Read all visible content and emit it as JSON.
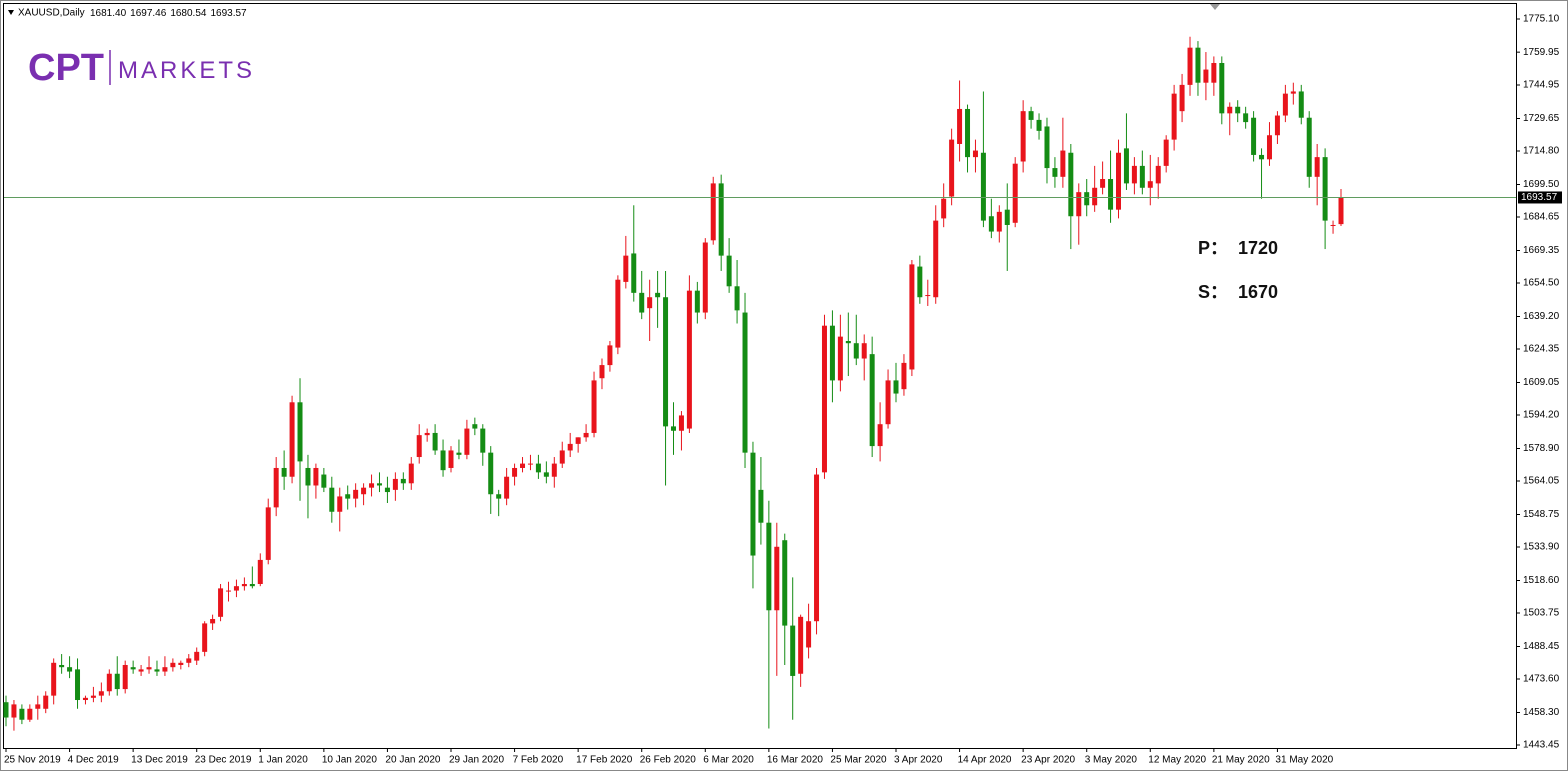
{
  "chart_data": {
    "type": "candlestick",
    "title": "XAUUSD,Daily",
    "last_bar_labels": [
      "1681.40",
      "1697.46",
      "1680.54",
      "1693.57"
    ],
    "logo": {
      "mark": "CPT",
      "text": "MARKETS"
    },
    "annotations": [
      {
        "label": "P：",
        "value": 1720
      },
      {
        "label": "S：",
        "value": 1670
      }
    ],
    "up_color": "#e8141c",
    "down_color": "#148c14",
    "price_line_color": "#5f9c5f",
    "grid": false,
    "ylim": [
      1442.08,
      1781.95
    ],
    "yticks": [
      {
        "value": 1775.1,
        "label": "1775.10"
      },
      {
        "value": 1759.95,
        "label": "1759.95"
      },
      {
        "value": 1744.95,
        "label": "1744.95"
      },
      {
        "value": 1729.65,
        "label": "1729.65"
      },
      {
        "value": 1714.8,
        "label": "1714.80"
      },
      {
        "value": 1699.5,
        "label": "1699.50"
      },
      {
        "value": 1684.65,
        "label": "1684.65"
      },
      {
        "value": 1669.35,
        "label": "1669.35"
      },
      {
        "value": 1654.5,
        "label": "1654.50"
      },
      {
        "value": 1639.2,
        "label": "1639.20"
      },
      {
        "value": 1624.35,
        "label": "1624.35"
      },
      {
        "value": 1609.05,
        "label": "1609.05"
      },
      {
        "value": 1594.2,
        "label": "1594.20"
      },
      {
        "value": 1578.9,
        "label": "1578.90"
      },
      {
        "value": 1564.05,
        "label": "1564.05"
      },
      {
        "value": 1548.75,
        "label": "1548.75"
      },
      {
        "value": 1533.9,
        "label": "1533.90"
      },
      {
        "value": 1518.6,
        "label": "1518.60"
      },
      {
        "value": 1503.75,
        "label": "1503.75"
      },
      {
        "value": 1488.45,
        "label": "1488.45"
      },
      {
        "value": 1473.6,
        "label": "1473.60"
      },
      {
        "value": 1458.3,
        "label": "1458.30"
      },
      {
        "value": 1443.45,
        "label": "1443.45"
      }
    ],
    "categories": [
      "25 Nov 2019",
      null,
      null,
      null,
      null,
      null,
      null,
      null,
      "4 Dec 2019",
      null,
      null,
      null,
      null,
      null,
      null,
      null,
      "13 Dec 2019",
      null,
      null,
      null,
      null,
      null,
      null,
      null,
      "23 Dec 2019",
      null,
      null,
      null,
      null,
      null,
      null,
      null,
      "1 Jan 2020",
      null,
      null,
      null,
      null,
      null,
      null,
      null,
      "10 Jan 2020",
      null,
      null,
      null,
      null,
      null,
      null,
      null,
      "20 Jan 2020",
      null,
      null,
      null,
      null,
      null,
      null,
      null,
      "29 Jan 2020",
      null,
      null,
      null,
      null,
      null,
      null,
      null,
      "7 Feb 2020",
      null,
      null,
      null,
      null,
      null,
      null,
      null,
      "17 Feb 2020",
      null,
      null,
      null,
      null,
      null,
      null,
      null,
      "26 Feb 2020",
      null,
      null,
      null,
      null,
      null,
      null,
      null,
      "6 Mar 2020",
      null,
      null,
      null,
      null,
      null,
      null,
      null,
      "16 Mar 2020",
      null,
      null,
      null,
      null,
      null,
      null,
      null,
      "25 Mar 2020",
      null,
      null,
      null,
      null,
      null,
      null,
      null,
      "3 Apr 2020",
      null,
      null,
      null,
      null,
      null,
      null,
      null,
      "14 Apr 2020",
      null,
      null,
      null,
      null,
      null,
      null,
      null,
      "23 Apr 2020",
      null,
      null,
      null,
      null,
      null,
      null,
      null,
      "3 May 2020",
      null,
      null,
      null,
      null,
      null,
      null,
      null,
      "12 May 2020",
      null,
      null,
      null,
      null,
      null,
      null,
      null,
      "21 May 2020",
      null,
      null,
      null,
      null,
      null,
      null,
      null,
      "31 May 2020",
      null,
      null,
      null,
      null,
      null,
      null,
      null,
      null
    ],
    "ohlc": [
      [
        1463,
        1466,
        1452,
        1456
      ],
      [
        1456,
        1464,
        1450,
        1462
      ],
      [
        1460,
        1462,
        1453,
        1455
      ],
      [
        1455,
        1462,
        1454,
        1460
      ],
      [
        1460,
        1466,
        1455,
        1462
      ],
      [
        1460,
        1468,
        1458,
        1466
      ],
      [
        1466,
        1483,
        1462,
        1481
      ],
      [
        1480,
        1485,
        1476,
        1479
      ],
      [
        1479,
        1484,
        1474,
        1477
      ],
      [
        1478,
        1483,
        1460,
        1464
      ],
      [
        1464,
        1466,
        1462,
        1465
      ],
      [
        1465,
        1470,
        1463,
        1466
      ],
      [
        1466,
        1472,
        1463,
        1468
      ],
      [
        1468,
        1478,
        1466,
        1476
      ],
      [
        1476,
        1484,
        1466,
        1469
      ],
      [
        1469,
        1482,
        1467,
        1480
      ],
      [
        1479,
        1482,
        1476,
        1478
      ],
      [
        1477,
        1480,
        1475,
        1478
      ],
      [
        1478,
        1484,
        1476,
        1479
      ],
      [
        1478,
        1482,
        1475,
        1477
      ],
      [
        1477,
        1484,
        1475,
        1479
      ],
      [
        1479,
        1483,
        1477,
        1481
      ],
      [
        1480,
        1482,
        1478,
        1481
      ],
      [
        1481,
        1485,
        1479,
        1483
      ],
      [
        1482,
        1488,
        1480,
        1486
      ],
      [
        1486,
        1500,
        1484,
        1499
      ],
      [
        1499,
        1503,
        1496,
        1501
      ],
      [
        1502,
        1517,
        1500,
        1515
      ],
      [
        1514,
        1518,
        1509,
        1514
      ],
      [
        1514,
        1519,
        1511,
        1516
      ],
      [
        1516,
        1520,
        1514,
        1517
      ],
      [
        1517,
        1525,
        1515,
        1516
      ],
      [
        1517,
        1531,
        1516,
        1528
      ],
      [
        1528,
        1556,
        1526,
        1552
      ],
      [
        1552,
        1575,
        1548,
        1570
      ],
      [
        1570,
        1578,
        1560,
        1566
      ],
      [
        1566,
        1603,
        1563,
        1600
      ],
      [
        1600,
        1611,
        1555,
        1573
      ],
      [
        1570,
        1576,
        1547,
        1562
      ],
      [
        1562,
        1572,
        1556,
        1570
      ],
      [
        1567,
        1570,
        1559,
        1561
      ],
      [
        1561,
        1566,
        1545,
        1550
      ],
      [
        1550,
        1561,
        1541,
        1557
      ],
      [
        1558,
        1562,
        1551,
        1556
      ],
      [
        1556,
        1563,
        1552,
        1560
      ],
      [
        1558,
        1563,
        1553,
        1561
      ],
      [
        1561,
        1567,
        1557,
        1563
      ],
      [
        1563,
        1568,
        1559,
        1562
      ],
      [
        1561,
        1566,
        1554,
        1559
      ],
      [
        1560,
        1568,
        1555,
        1565
      ],
      [
        1565,
        1568,
        1560,
        1563
      ],
      [
        1563,
        1575,
        1560,
        1572
      ],
      [
        1575,
        1590,
        1572,
        1585
      ],
      [
        1585,
        1588,
        1582,
        1586
      ],
      [
        1586,
        1590,
        1576,
        1578
      ],
      [
        1578,
        1583,
        1566,
        1569
      ],
      [
        1570,
        1580,
        1568,
        1578
      ],
      [
        1577,
        1583,
        1574,
        1576
      ],
      [
        1576,
        1592,
        1574,
        1588
      ],
      [
        1590,
        1593,
        1585,
        1588
      ],
      [
        1588,
        1590,
        1571,
        1577
      ],
      [
        1577,
        1580,
        1549,
        1558
      ],
      [
        1558,
        1560,
        1548,
        1556
      ],
      [
        1556,
        1570,
        1553,
        1566
      ],
      [
        1566,
        1572,
        1562,
        1570
      ],
      [
        1570,
        1575,
        1568,
        1572
      ],
      [
        1572,
        1576,
        1569,
        1572
      ],
      [
        1572,
        1576,
        1565,
        1568
      ],
      [
        1568,
        1573,
        1563,
        1566
      ],
      [
        1566,
        1575,
        1561,
        1572
      ],
      [
        1572,
        1582,
        1570,
        1578
      ],
      [
        1578,
        1586,
        1575,
        1581
      ],
      [
        1581,
        1584,
        1577,
        1584
      ],
      [
        1584,
        1590,
        1582,
        1586
      ],
      [
        1586,
        1614,
        1584,
        1610
      ],
      [
        1611,
        1620,
        1606,
        1617
      ],
      [
        1617,
        1628,
        1614,
        1626
      ],
      [
        1625,
        1658,
        1622,
        1656
      ],
      [
        1655,
        1676,
        1652,
        1667
      ],
      [
        1668,
        1690,
        1646,
        1650
      ],
      [
        1650,
        1660,
        1638,
        1641
      ],
      [
        1643,
        1656,
        1628,
        1648
      ],
      [
        1650,
        1660,
        1634,
        1648
      ],
      [
        1648,
        1660,
        1562,
        1589
      ],
      [
        1589,
        1600,
        1576,
        1587
      ],
      [
        1587,
        1596,
        1578,
        1594
      ],
      [
        1588,
        1658,
        1586,
        1651
      ],
      [
        1651,
        1655,
        1636,
        1641
      ],
      [
        1641,
        1675,
        1638,
        1673
      ],
      [
        1674,
        1703,
        1672,
        1700
      ],
      [
        1700,
        1704,
        1660,
        1667
      ],
      [
        1667,
        1675,
        1650,
        1653
      ],
      [
        1653,
        1665,
        1636,
        1642
      ],
      [
        1641,
        1650,
        1570,
        1577
      ],
      [
        1577,
        1582,
        1515,
        1530
      ],
      [
        1560,
        1575,
        1535,
        1545
      ],
      [
        1545,
        1555,
        1451,
        1505
      ],
      [
        1505,
        1545,
        1475,
        1534
      ],
      [
        1537,
        1540,
        1480,
        1498
      ],
      [
        1498,
        1520,
        1455,
        1475
      ],
      [
        1476,
        1503,
        1470,
        1502
      ],
      [
        1488,
        1508,
        1483,
        1500
      ],
      [
        1500,
        1570,
        1494,
        1567
      ],
      [
        1568,
        1640,
        1565,
        1635
      ],
      [
        1635,
        1642,
        1600,
        1610
      ],
      [
        1610,
        1640,
        1605,
        1630
      ],
      [
        1628,
        1641,
        1612,
        1627
      ],
      [
        1627,
        1640,
        1617,
        1620
      ],
      [
        1620,
        1631,
        1610,
        1627
      ],
      [
        1622,
        1630,
        1575,
        1580
      ],
      [
        1580,
        1600,
        1573,
        1590
      ],
      [
        1590,
        1615,
        1588,
        1610
      ],
      [
        1610,
        1618,
        1600,
        1604
      ],
      [
        1606,
        1622,
        1603,
        1618
      ],
      [
        1615,
        1665,
        1612,
        1663
      ],
      [
        1662,
        1667,
        1645,
        1648
      ],
      [
        1649,
        1656,
        1644,
        1649
      ],
      [
        1648,
        1690,
        1645,
        1683
      ],
      [
        1684,
        1700,
        1680,
        1693
      ],
      [
        1694,
        1725,
        1690,
        1720
      ],
      [
        1718,
        1747,
        1710,
        1734
      ],
      [
        1734,
        1736,
        1705,
        1712
      ],
      [
        1712,
        1720,
        1705,
        1715
      ],
      [
        1714,
        1742,
        1680,
        1683
      ],
      [
        1685,
        1693,
        1675,
        1678
      ],
      [
        1678,
        1690,
        1673,
        1687
      ],
      [
        1688,
        1700,
        1660,
        1681
      ],
      [
        1682,
        1712,
        1680,
        1709
      ],
      [
        1710,
        1738,
        1705,
        1733
      ],
      [
        1733,
        1735,
        1725,
        1729
      ],
      [
        1729,
        1732,
        1720,
        1724
      ],
      [
        1726,
        1730,
        1700,
        1707
      ],
      [
        1707,
        1712,
        1698,
        1703
      ],
      [
        1703,
        1730,
        1698,
        1715
      ],
      [
        1714,
        1718,
        1670,
        1685
      ],
      [
        1685,
        1700,
        1672,
        1696
      ],
      [
        1696,
        1702,
        1685,
        1690
      ],
      [
        1690,
        1708,
        1687,
        1698
      ],
      [
        1698,
        1710,
        1695,
        1702
      ],
      [
        1702,
        1715,
        1682,
        1688
      ],
      [
        1688,
        1720,
        1684,
        1714
      ],
      [
        1716,
        1732,
        1697,
        1700
      ],
      [
        1700,
        1712,
        1695,
        1708
      ],
      [
        1708,
        1715,
        1695,
        1698
      ],
      [
        1698,
        1713,
        1690,
        1701
      ],
      [
        1700,
        1712,
        1693,
        1708
      ],
      [
        1708,
        1722,
        1705,
        1720
      ],
      [
        1720,
        1745,
        1715,
        1741
      ],
      [
        1733,
        1750,
        1728,
        1745
      ],
      [
        1745,
        1767,
        1740,
        1762
      ],
      [
        1762,
        1765,
        1740,
        1746
      ],
      [
        1746,
        1760,
        1738,
        1752
      ],
      [
        1746,
        1758,
        1740,
        1755
      ],
      [
        1755,
        1758,
        1727,
        1732
      ],
      [
        1732,
        1737,
        1722,
        1735
      ],
      [
        1735,
        1738,
        1728,
        1732
      ],
      [
        1732,
        1735,
        1725,
        1728
      ],
      [
        1730,
        1733,
        1710,
        1713
      ],
      [
        1713,
        1716,
        1693,
        1711
      ],
      [
        1711,
        1728,
        1708,
        1722
      ],
      [
        1722,
        1733,
        1718,
        1731
      ],
      [
        1731,
        1745,
        1728,
        1741
      ],
      [
        1741,
        1746,
        1736,
        1742
      ],
      [
        1742,
        1745,
        1727,
        1730
      ],
      [
        1730,
        1733,
        1698,
        1703
      ],
      [
        1703,
        1718,
        1690,
        1712
      ],
      [
        1712,
        1716,
        1670,
        1683
      ],
      [
        1681,
        1683,
        1677,
        1681
      ],
      [
        1681.4,
        1697.46,
        1680.54,
        1693.57
      ]
    ]
  }
}
